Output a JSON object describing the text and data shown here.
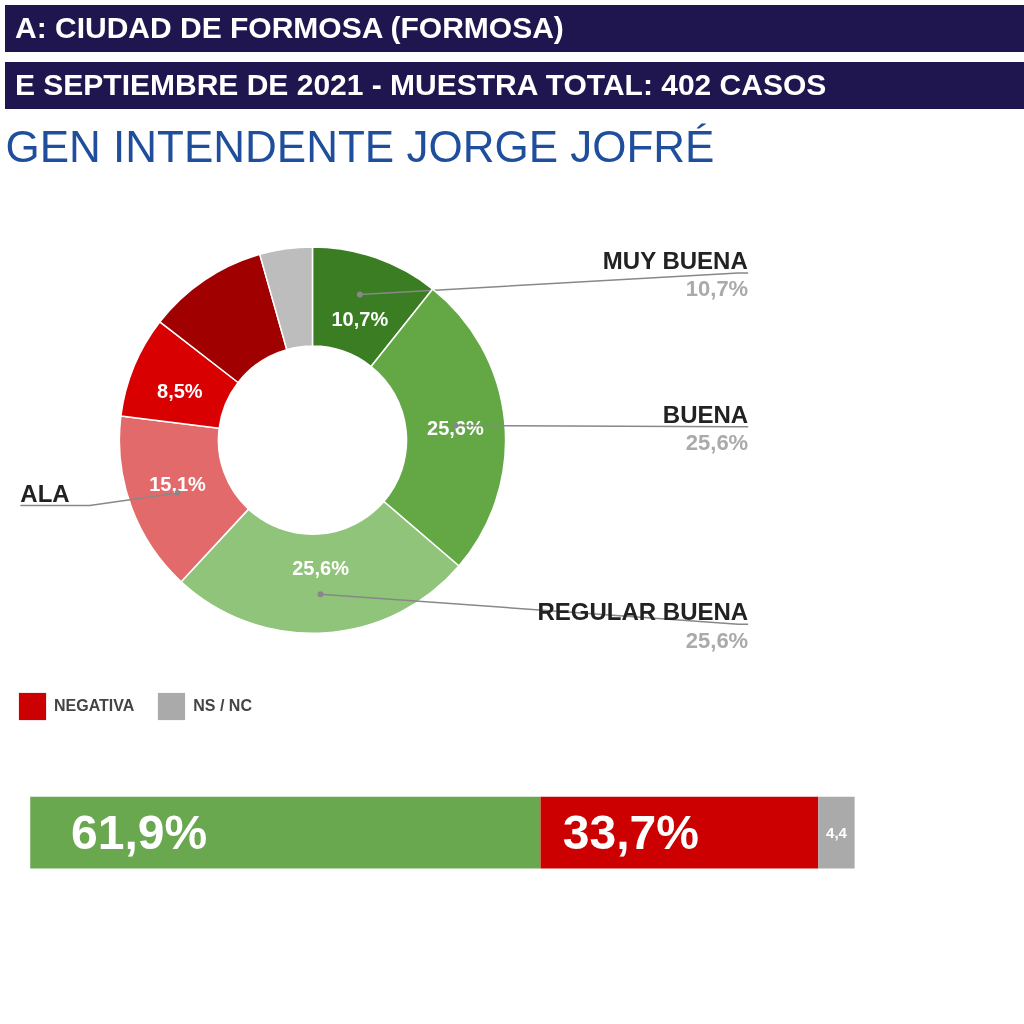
{
  "chart_data": [
    {
      "type": "donut",
      "title": "GEN INTENDENTE JORGE JOFRÉ",
      "annotations": [
        "A: CIUDAD DE FORMOSA (FORMOSA)",
        "E SEPTIEMBRE DE 2021  - MUESTRA TOTAL: 402 CASOS"
      ],
      "categories": [
        "MUY BUENA",
        "BUENA",
        "REGULAR BUENA",
        "ALA",
        null,
        null,
        null
      ],
      "values": [
        10.7,
        25.6,
        25.6,
        15.1,
        8.5,
        10.1,
        4.4
      ],
      "colors": [
        "#3b7d23",
        "#64a845",
        "#8fc47a",
        "#e36a6a",
        "#d80000",
        "#a00000",
        "#bdbdbd"
      ],
      "value_labels": [
        "10,7%",
        "25,6%",
        "25,6%",
        "15,1%",
        "8,5%",
        null,
        null
      ]
    },
    {
      "type": "bar",
      "orientation": "horizontal",
      "stacked": true,
      "categories": [
        null
      ],
      "xlim": [
        0,
        100
      ],
      "tick_labels": false,
      "legend": "top left",
      "series": [
        {
          "color": "#6aa84f",
          "values": [
            61.9
          ],
          "value_labels": [
            "61,9%"
          ]
        },
        {
          "name": "NEGATIVA",
          "color": "#cc0000",
          "values": [
            33.7
          ],
          "value_labels": [
            "33,7%"
          ]
        },
        {
          "name": "NS / NC",
          "color": "#aaaaaa",
          "values": [
            4.4
          ],
          "value_labels": [
            "4,4"
          ]
        }
      ]
    }
  ]
}
